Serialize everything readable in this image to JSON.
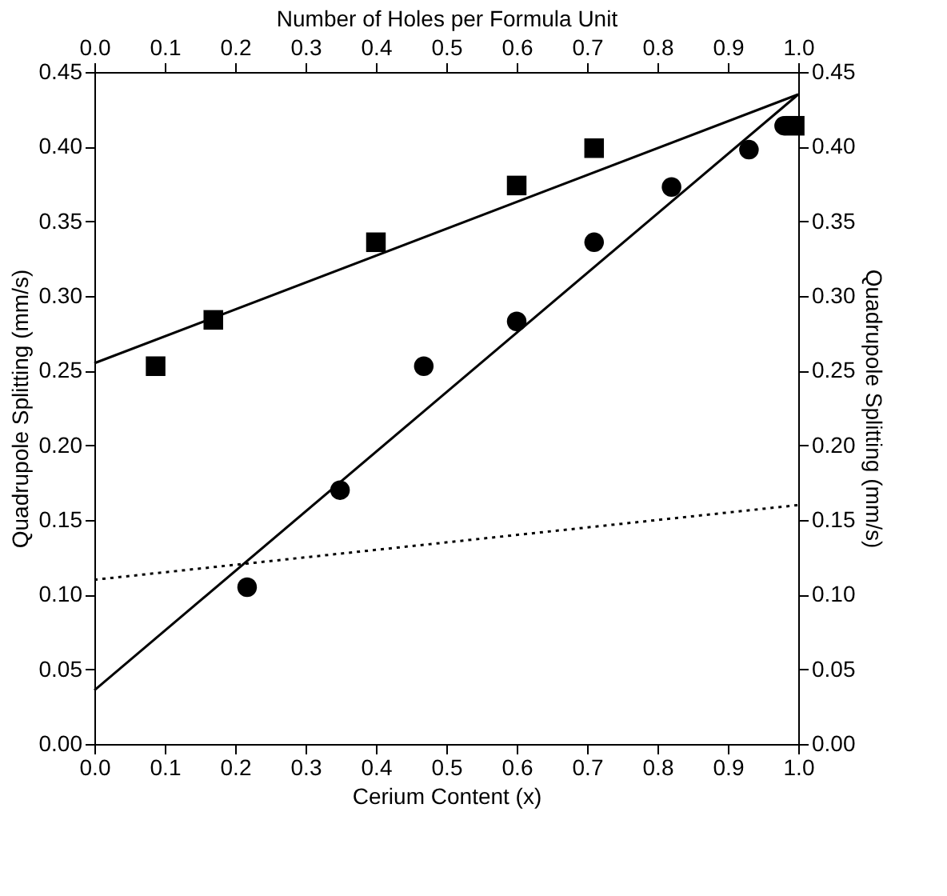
{
  "chart_data": {
    "type": "scatter",
    "xlabel": "Cerium Content (x)",
    "ylabel": "Quadrupole Splitting (mm/s)",
    "y2label": "Quadrupole Splitting (mm/s)",
    "x2label": "Number of Holes per Formula Unit",
    "xlim": [
      0,
      1
    ],
    "ylim": [
      0,
      0.45
    ],
    "x2lim": [
      0,
      1
    ],
    "y2lim": [
      0,
      0.45
    ],
    "xticks": [
      {
        "value": 0,
        "label": "0.0"
      },
      0.1,
      0.2,
      0.3,
      0.4,
      0.5,
      0.6,
      0.7,
      0.8,
      0.9,
      {
        "value": 1,
        "label": "1.0"
      }
    ],
    "x2ticks": [
      {
        "value": 0,
        "label": "0.0"
      },
      0.1,
      0.2,
      0.3,
      0.4,
      0.5,
      0.6,
      0.7,
      0.8,
      0.9,
      {
        "value": 1,
        "label": "1.0"
      }
    ],
    "yticks": [
      {
        "value": 0,
        "label": "0.00"
      },
      0.05,
      {
        "value": 0.1,
        "label": "0.10"
      },
      0.15,
      {
        "value": 0.2,
        "label": "0.20"
      },
      0.25,
      {
        "value": 0.3,
        "label": "0.30"
      },
      0.35,
      {
        "value": 0.4,
        "label": "0.40"
      },
      0.45
    ],
    "y2ticks": [
      {
        "value": 0,
        "label": "0.00"
      },
      0.05,
      {
        "value": 0.1,
        "label": "0.10"
      },
      0.15,
      {
        "value": 0.2,
        "label": "0.20"
      },
      0.25,
      {
        "value": 0.3,
        "label": "0.30"
      },
      0.35,
      {
        "value": 0.4,
        "label": "0.40"
      },
      0.45
    ],
    "grid": false,
    "series": [
      {
        "marker": "square",
        "color": "#000000",
        "x": [
          0.087,
          0.169,
          0.4,
          0.6,
          0.71,
          0.995
        ],
        "values": [
          0.253,
          0.284,
          0.336,
          0.374,
          0.399,
          0.414
        ]
      },
      {
        "marker": "circle",
        "color": "#000000",
        "x": [
          0.217,
          0.349,
          0.468,
          0.6,
          0.71,
          0.82,
          0.93,
          0.98
        ],
        "values": [
          0.105,
          0.17,
          0.253,
          0.283,
          0.336,
          0.373,
          0.398,
          0.414
        ]
      },
      {
        "type": "line",
        "line_style": "solid",
        "color": "#000000",
        "x": [
          0,
          1
        ],
        "values": [
          0.255,
          0.435
        ]
      },
      {
        "type": "line",
        "line_style": "solid",
        "color": "#000000",
        "x": [
          0,
          1
        ],
        "values": [
          0.036,
          0.435
        ]
      },
      {
        "type": "line",
        "line_style": "dotted",
        "color": "#000000",
        "x": [
          0,
          1
        ],
        "values": [
          0.11,
          0.16
        ]
      }
    ]
  }
}
